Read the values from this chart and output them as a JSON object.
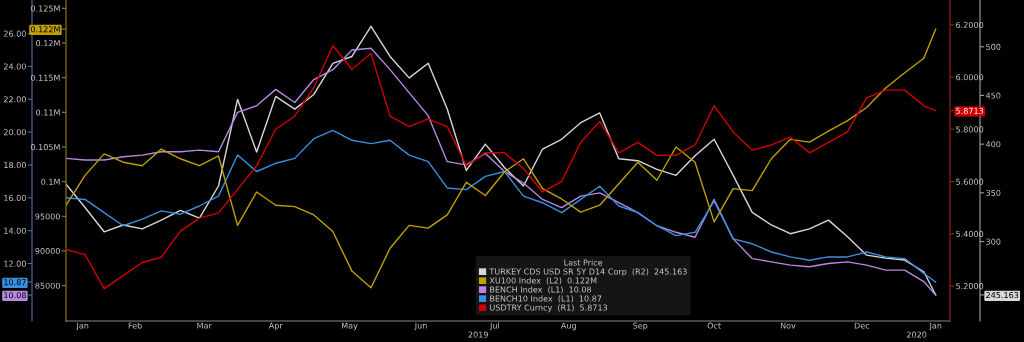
{
  "chart_data": [
    {
      "type": "line",
      "x": [
        "2019-01-17",
        "2019-01-25",
        "2019-02-02",
        "2019-02-10",
        "2019-02-18",
        "2019-02-26",
        "2019-03-06",
        "2019-03-14",
        "2019-03-22",
        "2019-03-30",
        "2019-04-07",
        "2019-04-15",
        "2019-04-23",
        "2019-05-01",
        "2019-05-09",
        "2019-05-17",
        "2019-05-25",
        "2019-06-02",
        "2019-06-10",
        "2019-06-18",
        "2019-06-26",
        "2019-07-04",
        "2019-07-12",
        "2019-07-20",
        "2019-07-28",
        "2019-08-05",
        "2019-08-13",
        "2019-08-21",
        "2019-08-29",
        "2019-09-06",
        "2019-09-14",
        "2019-09-22",
        "2019-09-30",
        "2019-10-08",
        "2019-10-16",
        "2019-10-24",
        "2019-11-01",
        "2019-11-09",
        "2019-11-17",
        "2019-11-25",
        "2019-12-03",
        "2019-12-11",
        "2019-12-19",
        "2019-12-27",
        "2020-01-04",
        "2020-01-12",
        "2020-01-17"
      ],
      "series": [
        {
          "name": "TURKEY CDS USD SR 5Y D14 Corp  (R2)  245.163",
          "color": "#d8d8d8",
          "values": [
            359,
            335,
            310,
            317,
            313,
            322,
            332,
            324,
            357,
            446,
            392,
            449,
            436,
            451,
            483,
            490,
            521,
            490,
            468,
            483,
            436,
            373,
            400,
            376,
            357,
            395,
            405,
            422,
            432,
            385,
            383,
            374,
            368,
            388,
            405,
            368,
            330,
            317,
            308,
            313,
            322,
            305,
            286,
            283,
            281,
            269,
            245.163
          ]
        }
      ],
      "xlim": [
        "2019-01-17",
        "2020-01-23"
      ],
      "ylim": [
        218.4,
        548
      ],
      "yticks": [
        {
          "value": 245.163,
          "label": "245.163"
        },
        300,
        350,
        400,
        450,
        500
      ],
      "tick_labels": "y",
      "marker": "none",
      "line_style": "solid"
    },
    {
      "type": "line",
      "x": [
        "2019-01-17",
        "2019-01-25",
        "2019-02-02",
        "2019-02-10",
        "2019-02-18",
        "2019-02-26",
        "2019-03-06",
        "2019-03-14",
        "2019-03-22",
        "2019-03-30",
        "2019-04-07",
        "2019-04-15",
        "2019-04-23",
        "2019-05-01",
        "2019-05-09",
        "2019-05-17",
        "2019-05-25",
        "2019-06-02",
        "2019-06-10",
        "2019-06-18",
        "2019-06-26",
        "2019-07-04",
        "2019-07-12",
        "2019-07-20",
        "2019-07-28",
        "2019-08-05",
        "2019-08-13",
        "2019-08-21",
        "2019-08-29",
        "2019-09-06",
        "2019-09-14",
        "2019-09-22",
        "2019-09-30",
        "2019-10-08",
        "2019-10-16",
        "2019-10-24",
        "2019-11-01",
        "2019-11-09",
        "2019-11-17",
        "2019-11-25",
        "2019-12-03",
        "2019-12-11",
        "2019-12-19",
        "2019-12-27",
        "2020-01-04",
        "2020-01-12",
        "2020-01-17"
      ],
      "series": [
        {
          "name": "XU100 Index  (L2)  0.122M",
          "color": "#c0a000",
          "axis": "y3",
          "values": [
            96600,
            100900,
            104000,
            102800,
            102300,
            104700,
            103300,
            102300,
            103700,
            93700,
            98500,
            96600,
            96400,
            95200,
            92800,
            87100,
            84700,
            90400,
            93700,
            93300,
            95200,
            99900,
            98000,
            101400,
            103300,
            99000,
            97500,
            95600,
            96600,
            99700,
            102800,
            100200,
            105000,
            102800,
            94200,
            99000,
            98700,
            103300,
            106100,
            105700,
            107300,
            108800,
            110700,
            113500,
            115700,
            117800,
            122000
          ]
        },
        {
          "name": "BENCH Index  (L1)  10.08",
          "color": "#b888e0",
          "axis": "y",
          "values": [
            18.4,
            18.3,
            18.3,
            18.5,
            18.6,
            18.8,
            18.8,
            18.9,
            18.8,
            21.2,
            21.6,
            22.6,
            21.8,
            23.2,
            23.8,
            25.0,
            25.1,
            23.8,
            22.4,
            21.0,
            18.2,
            18.0,
            18.7,
            17.6,
            16.9,
            15.9,
            15.4,
            16.1,
            16.3,
            15.7,
            15.1,
            14.3,
            13.9,
            13.6,
            15.9,
            13.5,
            12.3,
            12.1,
            11.9,
            11.8,
            12.0,
            12.1,
            11.9,
            11.6,
            11.6,
            10.9,
            10.08
          ]
        },
        {
          "name": "BENCH10 Index  (L1)  10.87",
          "color": "#3a8ee0",
          "axis": "y",
          "values": [
            16.0,
            15.9,
            15.1,
            14.3,
            14.7,
            15.2,
            15.0,
            15.5,
            16.1,
            18.6,
            17.6,
            18.1,
            18.4,
            19.6,
            20.1,
            19.5,
            19.3,
            19.5,
            18.6,
            18.2,
            16.6,
            16.5,
            17.3,
            17.6,
            16.1,
            15.7,
            15.1,
            15.9,
            16.7,
            15.5,
            15.1,
            14.3,
            13.7,
            13.9,
            15.8,
            13.5,
            13.2,
            12.7,
            12.4,
            12.2,
            12.4,
            12.4,
            12.7,
            12.4,
            12.3,
            11.4,
            10.87
          ]
        },
        {
          "name": "USDTRY Curncy  (R1)  5.8713",
          "color": "#d00000",
          "axis": "y2",
          "values": [
            5.34,
            5.32,
            5.19,
            5.24,
            5.29,
            5.31,
            5.41,
            5.46,
            5.48,
            5.57,
            5.66,
            5.8,
            5.85,
            5.96,
            6.12,
            6.03,
            6.09,
            5.85,
            5.81,
            5.84,
            5.81,
            5.66,
            5.71,
            5.71,
            5.65,
            5.56,
            5.6,
            5.75,
            5.83,
            5.71,
            5.75,
            5.7,
            5.7,
            5.74,
            5.89,
            5.79,
            5.72,
            5.74,
            5.77,
            5.71,
            5.75,
            5.79,
            5.92,
            5.95,
            5.95,
            5.89,
            5.8713
          ]
        }
      ],
      "xlim": [
        "2019-01-17",
        "2020-01-23"
      ],
      "xticks": [
        {
          "value": "2019-01-24",
          "label": "Jan"
        },
        {
          "value": "2019-02-15",
          "label": "Feb"
        },
        {
          "value": "2019-03-16",
          "label": "Mar"
        },
        {
          "value": "2019-04-15",
          "label": "Apr"
        },
        {
          "value": "2019-05-16",
          "label": "May"
        },
        {
          "value": "2019-06-15",
          "label": "Jun"
        },
        {
          "value": "2019-07-16",
          "label": "Jul"
        },
        {
          "value": "2019-08-16",
          "label": "Aug"
        },
        {
          "value": "2019-09-15",
          "label": "Sep"
        },
        {
          "value": "2019-10-16",
          "label": "Oct"
        },
        {
          "value": "2019-11-16",
          "label": "Nov"
        },
        {
          "value": "2019-12-17",
          "label": "Dec"
        },
        {
          "value": "2020-01-17",
          "label": "Jan"
        }
      ],
      "x2lim": [
        "2019-01-17",
        "2020-01-23"
      ],
      "x2ticks": [
        {
          "value": "2019-07-09",
          "label": "2019"
        },
        {
          "value": "2020-01-09",
          "label": "2020"
        }
      ],
      "ylim": [
        8.5,
        28.04
      ],
      "yticks": [
        {
          "value": 10.08,
          "label": "10.08"
        },
        {
          "value": 10.87,
          "label": "10.87"
        },
        {
          "value": 12,
          "label": "12.00"
        },
        {
          "value": 14,
          "label": "14.00"
        },
        {
          "value": 16,
          "label": "16.00"
        },
        {
          "value": 18,
          "label": "18.00"
        },
        {
          "value": 20,
          "label": "20.00"
        },
        {
          "value": 22,
          "label": "22.00"
        },
        {
          "value": 24,
          "label": "24.00"
        },
        {
          "value": 26,
          "label": "26.00"
        }
      ],
      "y2lim": [
        5.066,
        6.295
      ],
      "y2ticks": [
        {
          "value": 5.2,
          "label": "5.2000"
        },
        {
          "value": 5.4,
          "label": "5.4000"
        },
        {
          "value": 5.6,
          "label": "5.6000"
        },
        {
          "value": 5.8,
          "label": "5.8000"
        },
        {
          "value": 5.8713,
          "label": "5.8713"
        },
        {
          "value": 6.0,
          "label": "6.0000"
        },
        {
          "value": 6.2,
          "label": "6.2000"
        }
      ],
      "y3lim": [
        79900,
        126200
      ],
      "y3ticks": [
        85000,
        90000,
        95000,
        {
          "value": 100000,
          "label": "0.1M"
        },
        {
          "value": 105000,
          "label": "0.105M"
        },
        {
          "value": 110000,
          "label": "0.11M"
        },
        {
          "value": 115000,
          "label": "0.115M"
        },
        {
          "value": 120000,
          "label": "0.12M"
        },
        {
          "value": 122000,
          "label": "0.122M"
        },
        {
          "value": 125000,
          "label": "0.125M"
        }
      ],
      "legend": "bottom",
      "legend_title": "Last Price",
      "grid": false,
      "marker": "none",
      "line_style": "solid"
    }
  ]
}
